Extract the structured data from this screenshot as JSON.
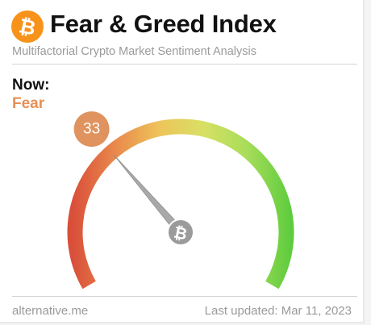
{
  "header": {
    "title": "Fear & Greed Index",
    "subtitle": "Multifactorial Crypto Market Sentiment Analysis",
    "logo_icon": "bitcoin-icon",
    "logo_color": "#f7931a"
  },
  "current": {
    "label": "Now:",
    "classification": "Fear",
    "classification_color": "#e59056",
    "value": "33",
    "value_badge_color": "#e0935f"
  },
  "gauge": {
    "min": 0,
    "max": 100,
    "value": 33,
    "colors": [
      "#d94f3a",
      "#e98a4c",
      "#eec45a",
      "#d8e064",
      "#a8dd5a",
      "#5fcc3e"
    ],
    "hub_icon": "bitcoin-icon"
  },
  "footer": {
    "source": "alternative.me",
    "updated": "Last updated: Mar 11, 2023"
  }
}
